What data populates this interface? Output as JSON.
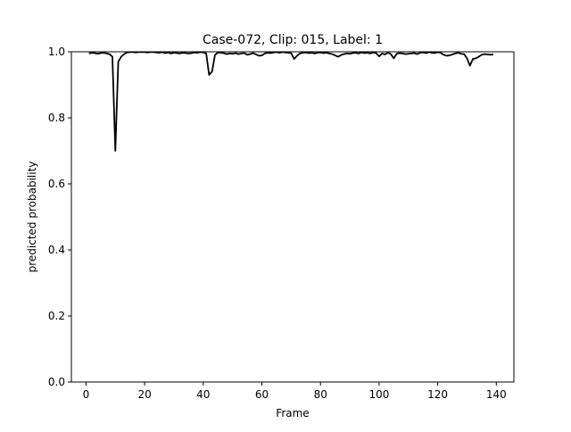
{
  "chart_data": {
    "type": "line",
    "title": "Case-072, Clip: 015, Label: 1",
    "xlabel": "Frame",
    "ylabel": "predicted probability",
    "xlim": [
      -5,
      146
    ],
    "ylim": [
      0.0,
      1.0
    ],
    "x_ticks": [
      0,
      20,
      40,
      60,
      80,
      100,
      120,
      140
    ],
    "y_ticks": [
      0.0,
      0.2,
      0.4,
      0.6,
      0.8,
      1.0
    ],
    "x_tick_labels": [
      "0",
      "20",
      "40",
      "60",
      "80",
      "100",
      "120",
      "140"
    ],
    "y_tick_labels": [
      "0.0",
      "0.2",
      "0.4",
      "0.6",
      "0.8",
      "1.0"
    ],
    "grid": false,
    "line_color": "#000000",
    "series": [
      {
        "x": [
          1,
          2,
          3,
          4,
          5,
          6,
          7,
          8,
          9,
          10,
          11,
          12,
          13,
          14,
          15,
          16,
          17,
          18,
          19,
          20,
          21,
          22,
          23,
          24,
          25,
          26,
          27,
          28,
          29,
          30,
          31,
          32,
          33,
          34,
          35,
          36,
          37,
          38,
          39,
          40,
          41,
          42,
          43,
          44,
          45,
          46,
          47,
          48,
          49,
          50,
          51,
          52,
          53,
          54,
          55,
          56,
          57,
          58,
          59,
          60,
          61,
          62,
          63,
          64,
          65,
          66,
          67,
          68,
          69,
          70,
          71,
          72,
          73,
          74,
          75,
          76,
          77,
          78,
          79,
          80,
          81,
          82,
          83,
          84,
          85,
          86,
          87,
          88,
          89,
          90,
          91,
          92,
          93,
          94,
          95,
          96,
          97,
          98,
          99,
          100,
          101,
          102,
          103,
          104,
          105,
          106,
          107,
          108,
          109,
          110,
          111,
          112,
          113,
          114,
          115,
          116,
          117,
          118,
          119,
          120,
          121,
          122,
          123,
          124,
          125,
          126,
          127,
          128,
          129,
          130,
          131,
          132,
          133,
          134,
          135,
          136,
          137,
          138,
          139
        ],
        "y": [
          0.995,
          0.997,
          0.996,
          0.994,
          0.996,
          0.997,
          0.995,
          0.993,
          0.985,
          0.7,
          0.97,
          0.985,
          0.993,
          0.998,
          0.999,
          0.999,
          0.998,
          0.999,
          0.999,
          0.999,
          0.998,
          0.999,
          0.999,
          0.998,
          0.997,
          0.999,
          0.996,
          0.998,
          0.995,
          0.997,
          0.996,
          0.995,
          0.997,
          0.996,
          0.995,
          0.996,
          0.998,
          0.997,
          0.999,
          0.998,
          0.995,
          0.93,
          0.94,
          0.99,
          0.998,
          0.997,
          0.996,
          0.993,
          0.995,
          0.994,
          0.996,
          0.993,
          0.995,
          0.996,
          0.991,
          0.993,
          0.996,
          0.992,
          0.988,
          0.989,
          0.995,
          0.997,
          0.996,
          0.998,
          0.999,
          0.997,
          0.999,
          0.998,
          0.997,
          0.996,
          0.978,
          0.988,
          0.995,
          0.997,
          0.998,
          0.996,
          0.997,
          0.995,
          0.997,
          0.998,
          0.996,
          0.997,
          0.995,
          0.993,
          0.989,
          0.985,
          0.99,
          0.993,
          0.995,
          0.994,
          0.996,
          0.997,
          0.995,
          0.998,
          0.996,
          0.997,
          0.995,
          0.998,
          0.996,
          0.986,
          0.995,
          0.992,
          0.997,
          0.993,
          0.98,
          0.994,
          0.996,
          0.995,
          0.993,
          0.994,
          0.995,
          0.996,
          0.993,
          0.997,
          0.998,
          0.996,
          0.999,
          0.997,
          0.996,
          0.999,
          0.997,
          0.991,
          0.988,
          0.989,
          0.992,
          0.995,
          0.997,
          0.994,
          0.993,
          0.98,
          0.958,
          0.978,
          0.98,
          0.985,
          0.991,
          0.993,
          0.992,
          0.991,
          0.992
        ]
      }
    ]
  }
}
